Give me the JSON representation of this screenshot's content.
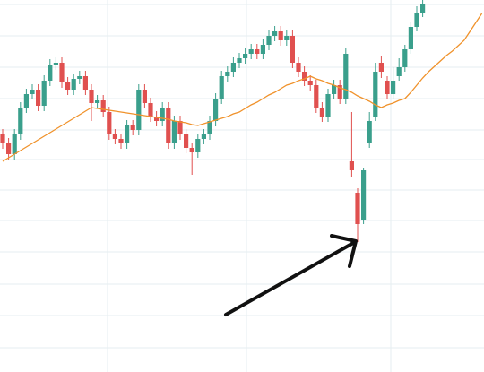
{
  "chart_data": {
    "type": "candlestick",
    "categories": [
      null,
      null,
      null,
      null,
      null,
      null,
      null,
      null,
      null,
      null,
      null,
      null,
      null,
      null,
      null,
      null,
      null,
      null,
      null,
      null,
      null,
      null,
      null,
      null,
      null,
      null,
      null,
      null,
      null,
      null,
      null,
      null,
      null,
      null,
      null,
      null,
      null,
      null,
      null,
      null,
      null,
      null,
      null,
      null,
      null,
      null,
      null,
      null,
      null,
      null,
      null,
      null,
      null,
      null,
      null,
      null,
      null,
      null,
      null,
      null,
      null,
      null,
      null,
      null,
      null,
      null,
      null,
      null,
      null,
      null,
      null,
      null,
      null,
      null,
      null,
      null,
      null,
      null,
      null,
      null,
      null,
      null
    ],
    "open": [
      265,
      255,
      243,
      265,
      295,
      310,
      315,
      297,
      325,
      343,
      345,
      323,
      315,
      327,
      330,
      315,
      300,
      303,
      290,
      265,
      260,
      255,
      275,
      270,
      315,
      300,
      285,
      280,
      295,
      255,
      280,
      265,
      250,
      245,
      260,
      265,
      280,
      305,
      330,
      335,
      345,
      350,
      355,
      360,
      355,
      365,
      375,
      380,
      370,
      375,
      345,
      335,
      325,
      320,
      295,
      285,
      310,
      320,
      305,
      235,
      200,
      170,
      255,
      285,
      345,
      325,
      310,
      330,
      340,
      360,
      385,
      400,
      null,
      null,
      null,
      null,
      null,
      null,
      null,
      null,
      null,
      null
    ],
    "high": [
      271,
      261,
      271,
      301,
      316,
      321,
      321,
      331,
      349,
      351,
      351,
      329,
      333,
      336,
      336,
      321,
      309,
      309,
      296,
      271,
      266,
      281,
      281,
      321,
      321,
      306,
      291,
      301,
      301,
      286,
      286,
      271,
      256,
      266,
      271,
      286,
      311,
      336,
      341,
      351,
      356,
      361,
      366,
      366,
      371,
      381,
      386,
      386,
      381,
      381,
      351,
      341,
      331,
      326,
      301,
      316,
      326,
      326,
      361,
      290,
      205,
      228,
      290,
      345,
      352,
      330,
      340,
      350,
      365,
      390,
      408,
      415,
      null,
      null,
      null,
      null,
      null,
      null,
      null,
      null,
      null,
      null
    ],
    "low": [
      249,
      237,
      237,
      259,
      289,
      304,
      291,
      291,
      319,
      337,
      317,
      309,
      309,
      321,
      309,
      280,
      294,
      284,
      259,
      254,
      249,
      249,
      264,
      264,
      294,
      279,
      274,
      274,
      249,
      249,
      259,
      244,
      220,
      239,
      254,
      259,
      274,
      299,
      324,
      329,
      339,
      344,
      349,
      349,
      349,
      359,
      369,
      364,
      364,
      339,
      329,
      319,
      314,
      289,
      279,
      279,
      304,
      299,
      299,
      218,
      145,
      165,
      250,
      280,
      328,
      305,
      305,
      325,
      335,
      355,
      380,
      396,
      null,
      null,
      null,
      null,
      null,
      null,
      null,
      null,
      null,
      null
    ],
    "close": [
      255,
      243,
      265,
      295,
      310,
      315,
      297,
      325,
      343,
      345,
      323,
      315,
      327,
      330,
      315,
      300,
      303,
      290,
      265,
      260,
      255,
      275,
      270,
      315,
      300,
      285,
      280,
      295,
      255,
      280,
      265,
      250,
      245,
      260,
      265,
      280,
      305,
      330,
      335,
      345,
      350,
      355,
      360,
      355,
      365,
      375,
      380,
      370,
      375,
      345,
      335,
      325,
      320,
      295,
      285,
      310,
      320,
      305,
      355,
      225,
      165,
      225,
      280,
      335,
      335,
      310,
      325,
      340,
      360,
      385,
      400,
      410,
      null,
      null,
      null,
      null,
      null,
      null,
      null,
      null,
      null,
      null
    ],
    "up_color": "#3a9f8c",
    "down_color": "#e0504f",
    "lines": [
      {
        "color": "#f0922b",
        "values": [
          235,
          239,
          243,
          247,
          251,
          255,
          259,
          263,
          267,
          271,
          275,
          279,
          283,
          287,
          291,
          295,
          294,
          293,
          292,
          291,
          290,
          289,
          288,
          287,
          286,
          285,
          284,
          283,
          282,
          280,
          279,
          278,
          276,
          275,
          277,
          279,
          281,
          283,
          285,
          288,
          290,
          294,
          298,
          301,
          305,
          309,
          312,
          316,
          320,
          322,
          325,
          327,
          330,
          327,
          325,
          322,
          320,
          317,
          315,
          312,
          308,
          305,
          302,
          298,
          295,
          298,
          300,
          303,
          305,
          312,
          320,
          328,
          335,
          341,
          347,
          353,
          358,
          364,
          370,
          380,
          390,
          400
        ]
      }
    ],
    "ylim": [
      0,
      415
    ]
  }
}
